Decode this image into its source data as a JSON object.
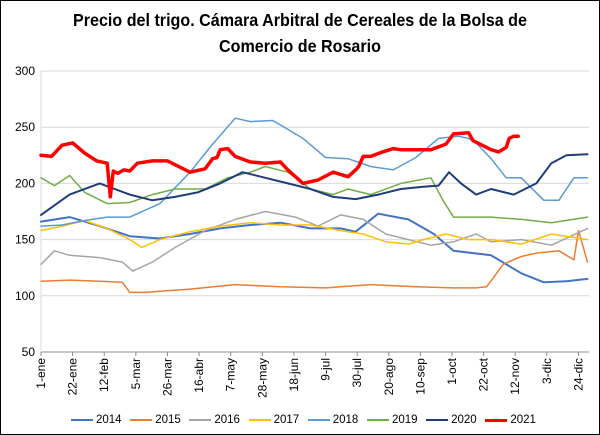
{
  "chart_data": {
    "type": "line",
    "title_lines": [
      "Precio del trigo. Cámara Arbitral de Cereales de la Bolsa de",
      "Comercio de Rosario"
    ],
    "ylim": [
      50,
      300
    ],
    "y_ticks": [
      "50",
      "100",
      "150",
      "200",
      "250",
      "300"
    ],
    "xlim": [
      1,
      365
    ],
    "x_ticks": [
      {
        "day": 1,
        "label": "1-ene"
      },
      {
        "day": 22,
        "label": "22-ene"
      },
      {
        "day": 43,
        "label": "12-feb"
      },
      {
        "day": 64,
        "label": "5-mar"
      },
      {
        "day": 85,
        "label": "26-mar"
      },
      {
        "day": 106,
        "label": "16-abr"
      },
      {
        "day": 127,
        "label": "7-may"
      },
      {
        "day": 148,
        "label": "28-may"
      },
      {
        "day": 169,
        "label": "18-jun"
      },
      {
        "day": 190,
        "label": "9-jul"
      },
      {
        "day": 211,
        "label": "30-jul"
      },
      {
        "day": 232,
        "label": "20-ago"
      },
      {
        "day": 253,
        "label": "10-sep"
      },
      {
        "day": 274,
        "label": "1-oct"
      },
      {
        "day": 295,
        "label": "22-oct"
      },
      {
        "day": 316,
        "label": "12-nov"
      },
      {
        "day": 337,
        "label": "3-dic"
      },
      {
        "day": 358,
        "label": "24-dic"
      }
    ],
    "grid": true,
    "legend_position": "bottom",
    "series": [
      {
        "name": "2014",
        "color": "#4472C4",
        "width": 2,
        "x": [
          1,
          20,
          40,
          60,
          80,
          100,
          120,
          140,
          160,
          180,
          200,
          210,
          225,
          245,
          262,
          275,
          300,
          320,
          335,
          350,
          364
        ],
        "y": [
          166,
          170,
          162,
          153,
          151,
          155,
          160,
          163,
          165,
          160,
          160,
          157,
          173,
          168,
          155,
          140,
          136,
          120,
          112,
          113,
          115
        ]
      },
      {
        "name": "2015",
        "color": "#ED7D31",
        "width": 1.5,
        "x": [
          1,
          20,
          40,
          55,
          60,
          70,
          80,
          100,
          130,
          160,
          190,
          220,
          250,
          275,
          290,
          297,
          302,
          308,
          320,
          330,
          345,
          355,
          358,
          364
        ],
        "y": [
          113,
          114,
          113,
          112,
          103,
          103,
          104,
          106,
          110,
          108,
          107,
          110,
          108,
          107,
          107,
          108,
          117,
          128,
          135,
          138,
          140,
          132,
          158,
          130
        ]
      },
      {
        "name": "2016",
        "color": "#A5A5A5",
        "width": 1.5,
        "x": [
          1,
          10,
          20,
          40,
          55,
          62,
          75,
          90,
          110,
          130,
          150,
          170,
          185,
          200,
          215,
          230,
          245,
          260,
          275,
          290,
          300,
          320,
          340,
          364
        ],
        "y": [
          128,
          140,
          136,
          134,
          130,
          122,
          130,
          143,
          158,
          168,
          175,
          170,
          162,
          172,
          168,
          155,
          150,
          145,
          148,
          155,
          148,
          150,
          145,
          160
        ]
      },
      {
        "name": "2017",
        "color": "#FFC000",
        "width": 1.5,
        "x": [
          1,
          15,
          30,
          45,
          60,
          68,
          80,
          100,
          120,
          140,
          160,
          180,
          200,
          215,
          230,
          245,
          255,
          270,
          285,
          300,
          320,
          340,
          364
        ],
        "y": [
          158,
          162,
          167,
          160,
          150,
          143,
          150,
          157,
          162,
          165,
          163,
          163,
          158,
          155,
          148,
          146,
          150,
          155,
          150,
          150,
          146,
          155,
          150
        ]
      },
      {
        "name": "2018",
        "color": "#5B9BD5",
        "width": 1.5,
        "x": [
          1,
          15,
          30,
          45,
          60,
          80,
          100,
          115,
          130,
          140,
          155,
          165,
          175,
          190,
          205,
          220,
          235,
          250,
          265,
          278,
          285,
          290,
          300,
          310,
          320,
          335,
          345,
          355,
          364
        ],
        "y": [
          162,
          163,
          167,
          170,
          170,
          182,
          210,
          235,
          258,
          255,
          256,
          248,
          240,
          223,
          222,
          215,
          212,
          223,
          240,
          242,
          240,
          236,
          222,
          205,
          205,
          185,
          185,
          205,
          205
        ]
      },
      {
        "name": "2019",
        "color": "#70AD47",
        "width": 1.5,
        "x": [
          1,
          10,
          20,
          30,
          45,
          60,
          75,
          90,
          110,
          125,
          140,
          150,
          165,
          180,
          195,
          205,
          220,
          240,
          260,
          268,
          275,
          300,
          320,
          340,
          364
        ],
        "y": [
          205,
          198,
          207,
          192,
          182,
          183,
          190,
          195,
          195,
          205,
          210,
          215,
          210,
          195,
          190,
          195,
          190,
          200,
          205,
          185,
          170,
          170,
          168,
          165,
          170
        ]
      },
      {
        "name": "2020",
        "color": "#1F3D7A",
        "width": 2,
        "x": [
          1,
          20,
          40,
          60,
          75,
          90,
          105,
          120,
          135,
          150,
          165,
          180,
          195,
          210,
          225,
          240,
          255,
          265,
          272,
          280,
          290,
          300,
          315,
          330,
          340,
          350,
          364
        ],
        "y": [
          172,
          190,
          200,
          190,
          185,
          188,
          192,
          200,
          210,
          205,
          200,
          195,
          188,
          186,
          190,
          195,
          197,
          198,
          210,
          200,
          190,
          195,
          190,
          200,
          218,
          225,
          226
        ]
      },
      {
        "name": "2021",
        "color": "#FF0000",
        "width": 3.5,
        "x": [
          1,
          8,
          15,
          22,
          30,
          38,
          45,
          47,
          49,
          52,
          56,
          60,
          65,
          75,
          85,
          100,
          110,
          115,
          118,
          120,
          125,
          130,
          140,
          150,
          160,
          165,
          175,
          185,
          195,
          205,
          210,
          212,
          215,
          220,
          228,
          235,
          240,
          250,
          260,
          270,
          275,
          285,
          288,
          300,
          305,
          310,
          312,
          315,
          318
        ],
        "y": [
          225,
          224,
          234,
          236,
          227,
          220,
          218,
          188,
          211,
          209,
          212,
          211,
          218,
          220,
          220,
          210,
          213,
          222,
          223,
          230,
          231,
          224,
          219,
          218,
          219,
          212,
          200,
          203,
          210,
          206,
          212,
          215,
          224,
          224,
          228,
          231,
          230,
          230,
          230,
          235,
          244,
          245,
          238,
          230,
          228,
          232,
          240,
          242,
          242
        ]
      }
    ]
  }
}
